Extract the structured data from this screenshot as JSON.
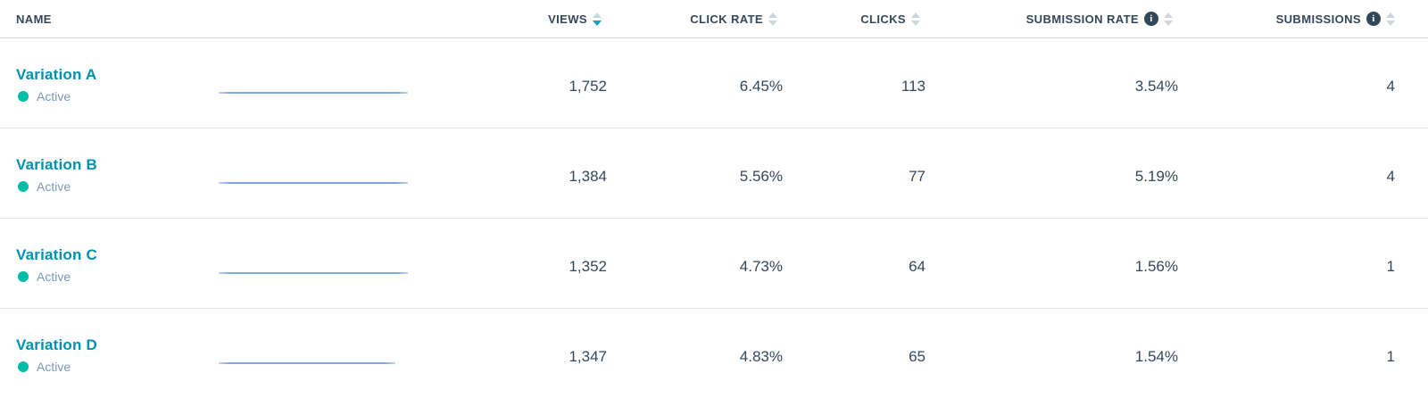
{
  "colors": {
    "header_text": "#33475b",
    "value_text": "#33475b",
    "variation_link": "#0091ae",
    "active_dot": "#00bda5",
    "status_text": "#7c98b6",
    "sort_arrow_inactive": "#cbd6e2",
    "sort_arrow_active": "#00a4bd",
    "info_icon_bg": "#33475b",
    "sparkline_blue": "#7ea6e4",
    "row_divider": "#dfe3eb"
  },
  "table": {
    "columns": [
      {
        "key": "name",
        "label": "NAME",
        "sortable": false,
        "sort_state": "none",
        "has_info": false
      },
      {
        "key": "views",
        "label": "VIEWS",
        "sortable": true,
        "sort_state": "desc",
        "has_info": false
      },
      {
        "key": "click_rate",
        "label": "CLICK RATE",
        "sortable": true,
        "sort_state": "none",
        "has_info": false
      },
      {
        "key": "clicks",
        "label": "CLICKS",
        "sortable": true,
        "sort_state": "none",
        "has_info": false
      },
      {
        "key": "submission_rate",
        "label": "SUBMISSION RATE",
        "sortable": true,
        "sort_state": "none",
        "has_info": true
      },
      {
        "key": "submissions",
        "label": "SUBMISSIONS",
        "sortable": true,
        "sort_state": "none",
        "has_info": true
      }
    ],
    "rows": [
      {
        "name": "Variation A",
        "status": "Active",
        "views": "1,752",
        "click_rate": "6.45%",
        "clicks": "113",
        "submission_rate": "3.54%",
        "submissions": "4",
        "spark_width": 212
      },
      {
        "name": "Variation B",
        "status": "Active",
        "views": "1,384",
        "click_rate": "5.56%",
        "clicks": "77",
        "submission_rate": "5.19%",
        "submissions": "4",
        "spark_width": 212
      },
      {
        "name": "Variation C",
        "status": "Active",
        "views": "1,352",
        "click_rate": "4.73%",
        "clicks": "64",
        "submission_rate": "1.56%",
        "submissions": "1",
        "spark_width": 212
      },
      {
        "name": "Variation D",
        "status": "Active",
        "views": "1,347",
        "click_rate": "4.83%",
        "clicks": "65",
        "submission_rate": "1.54%",
        "submissions": "1",
        "spark_width": 198
      }
    ]
  }
}
